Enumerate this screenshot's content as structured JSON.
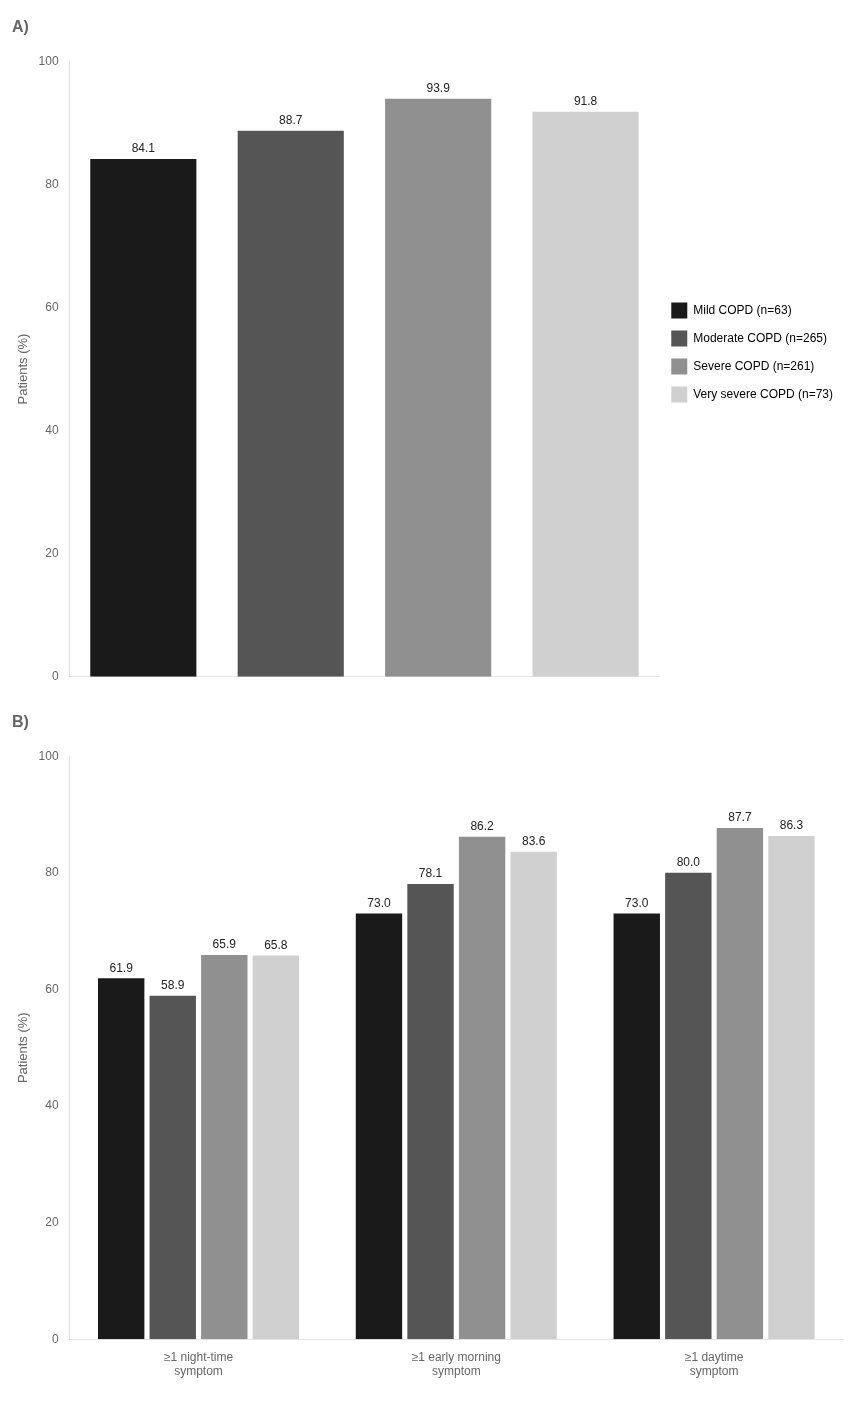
{
  "chart_data": [
    {
      "type": "bar",
      "title": "A)",
      "categories": [
        "Mild COPD (n=63)",
        "Moderate COPD (n=265)",
        "Severe COPD (n=261)",
        "Very severe COPD (n=73)"
      ],
      "values": [
        84.1,
        88.7,
        93.9,
        91.8
      ],
      "colors": [
        "#1a1a1a",
        "#555555",
        "#909090",
        "#d0d0d0"
      ],
      "ylabel": "Patients (%)",
      "ylim": [
        0,
        100
      ],
      "yticks": [
        0,
        20,
        40,
        60,
        80,
        100
      ],
      "grid": false,
      "legend": "right",
      "tick_labels": "y",
      "data_labels": true
    },
    {
      "type": "bar",
      "title": "B)",
      "categories": [
        "≥1 night-time\nsymptom",
        "≥1 early morning\nsymptom",
        "≥1 daytime\nsymptom"
      ],
      "series": [
        {
          "name": "Mild COPD (n=63)",
          "color": "#1a1a1a",
          "values": [
            61.9,
            73.0,
            73.0
          ],
          "value_labels": [
            "61.9",
            "73.0",
            "73.0"
          ]
        },
        {
          "name": "Moderate COPD (n=265)",
          "color": "#555555",
          "values": [
            58.9,
            78.1,
            80.0
          ],
          "value_labels": [
            "58.9",
            "78.1",
            "80.0"
          ]
        },
        {
          "name": "Severe COPD (n=261)",
          "color": "#909090",
          "values": [
            65.9,
            86.2,
            87.7
          ],
          "value_labels": [
            "65.9",
            "86.2",
            "87.7"
          ]
        },
        {
          "name": "Very severe COPD (n=73)",
          "color": "#d0d0d0",
          "values": [
            65.8,
            83.6,
            86.3
          ],
          "value_labels": [
            "65.8",
            "83.6",
            "86.3"
          ]
        }
      ],
      "ylabel": "Patients (%)",
      "ylim": [
        0,
        100
      ],
      "yticks": [
        0,
        20,
        40,
        60,
        80,
        100
      ],
      "grid": false,
      "data_labels": true
    }
  ]
}
